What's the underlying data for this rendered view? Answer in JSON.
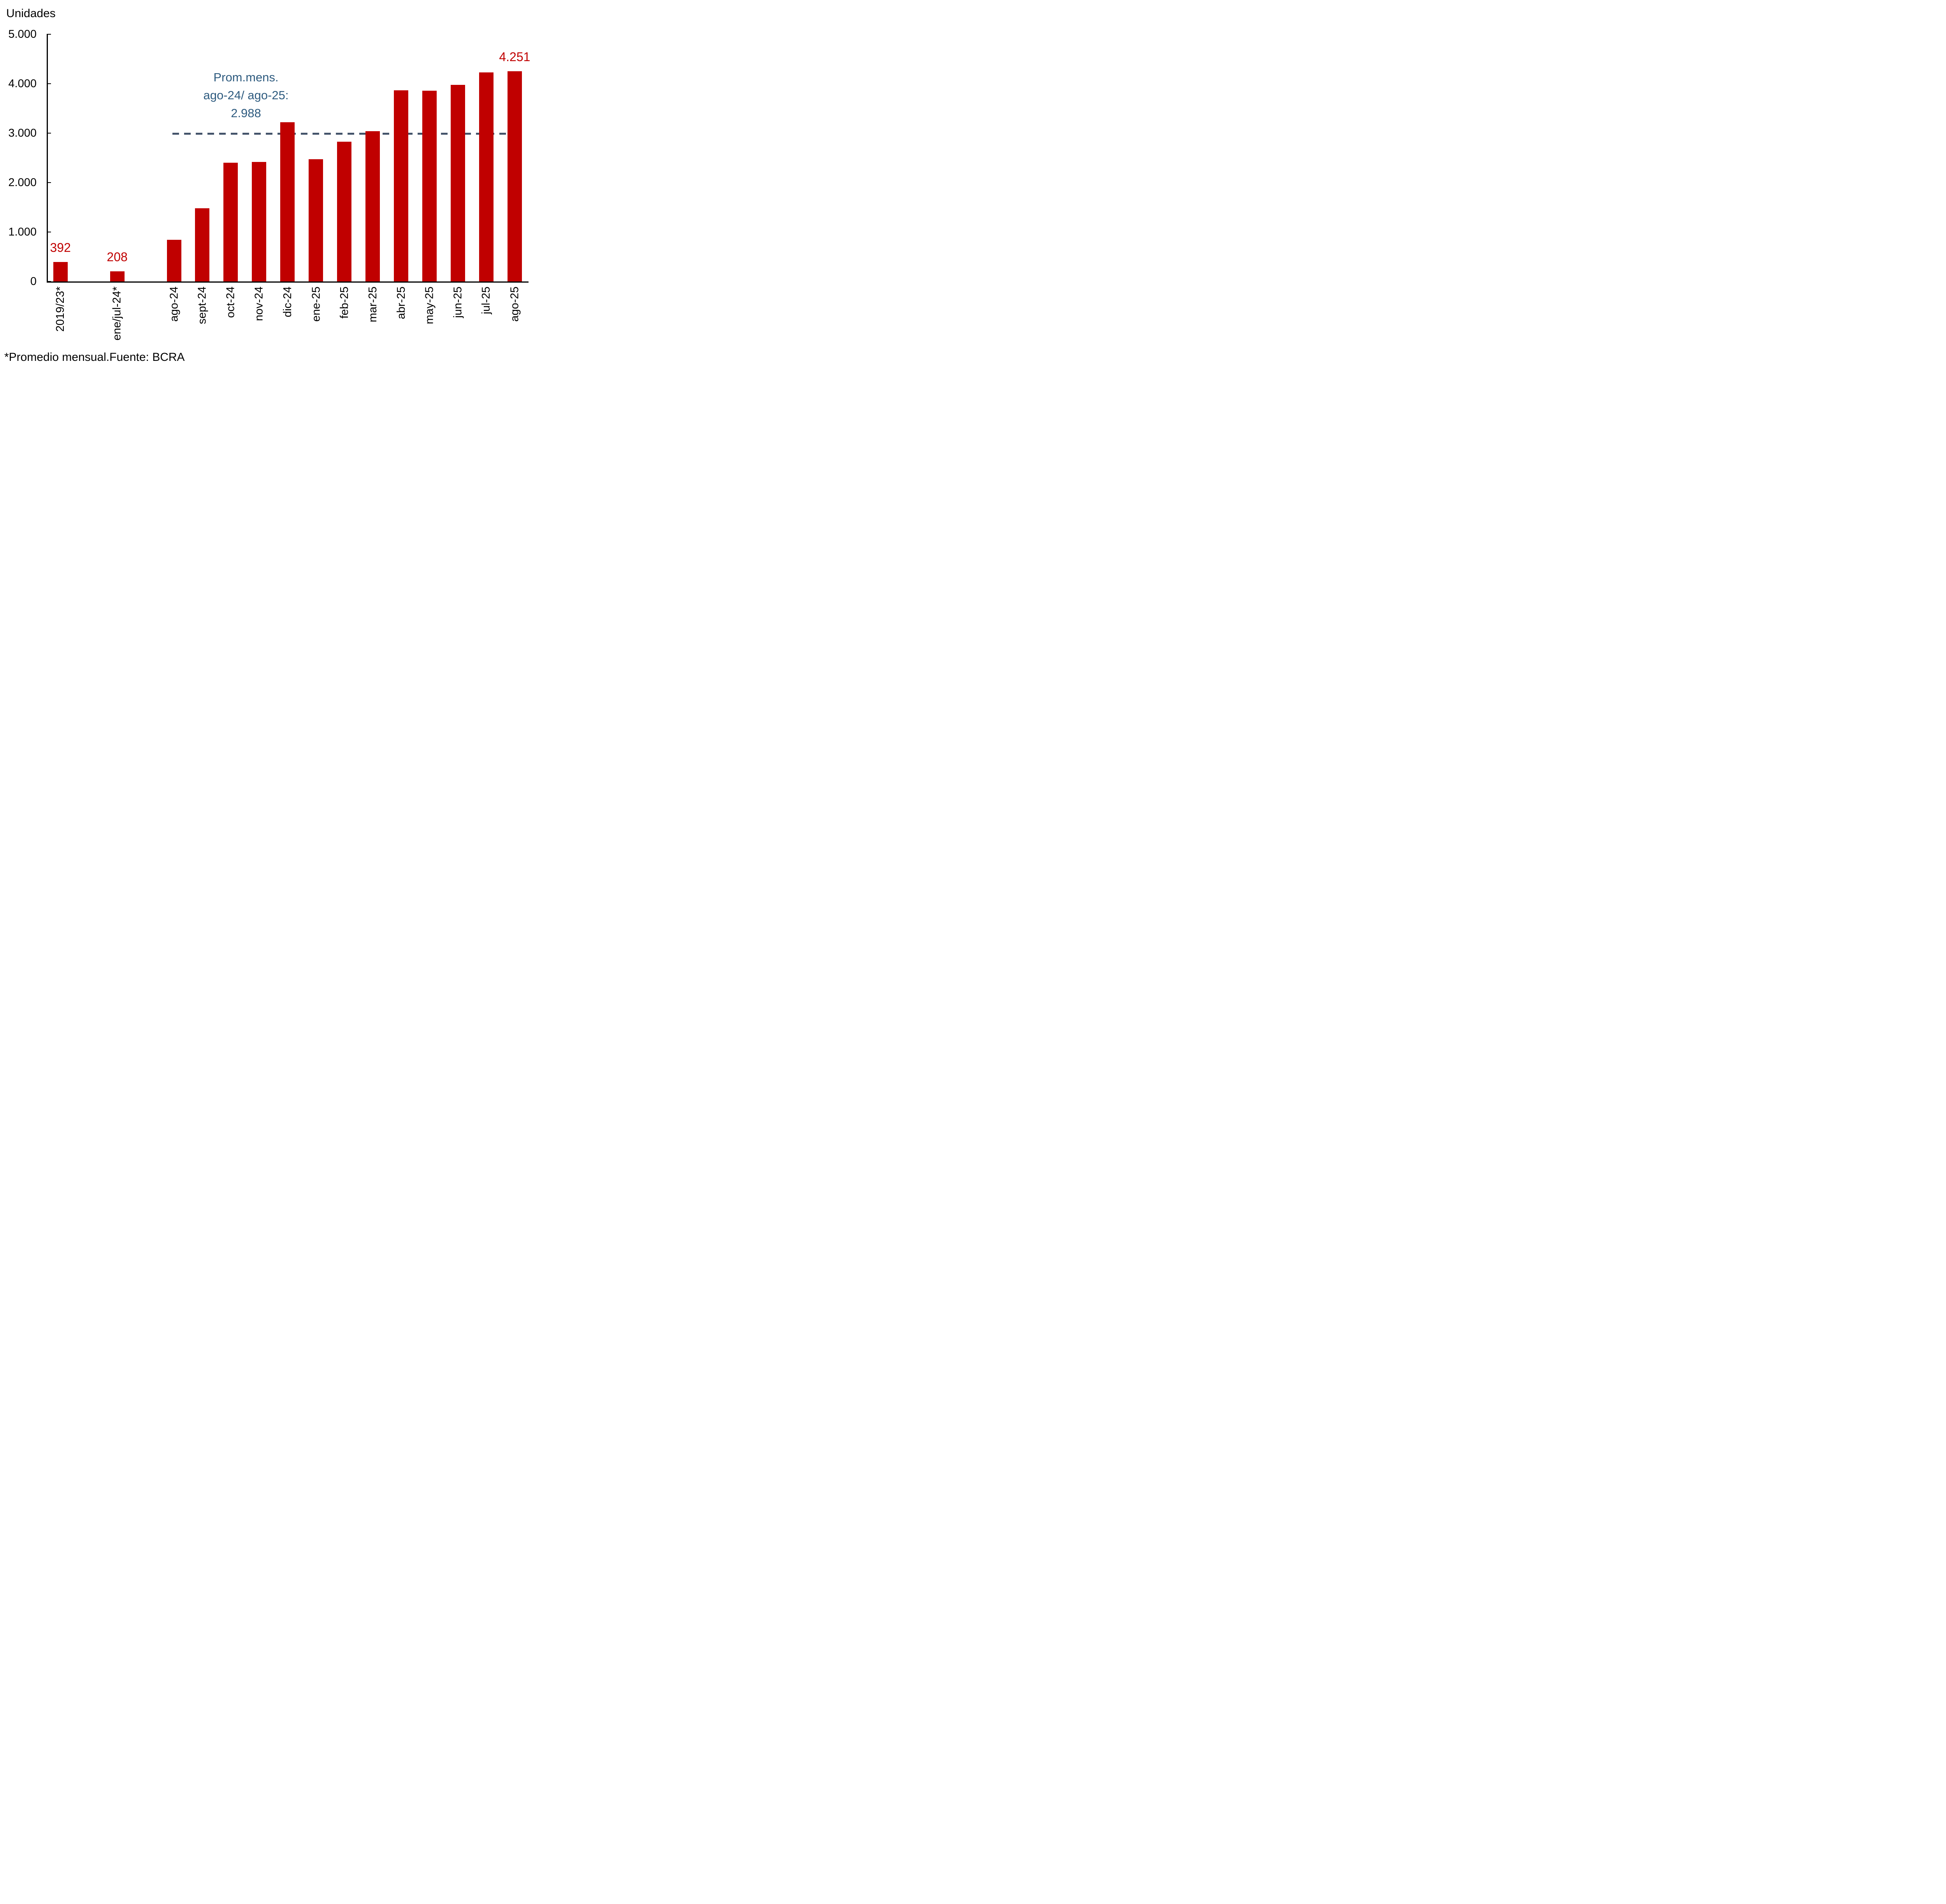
{
  "unit_label": "Unidades",
  "footnote": "*Promedio mensual.Fuente: BCRA",
  "annotation": {
    "lines": [
      "Prom.mens.",
      "ago-24/ ago-25:",
      "2.988"
    ],
    "color": "#2E5B7F"
  },
  "chart_data": {
    "type": "bar",
    "title": "",
    "ylabel": "Unidades",
    "xlabel": "",
    "ylim": [
      0,
      5000
    ],
    "grid": false,
    "legend_position": "none",
    "y_ticks": [
      {
        "value": 5000,
        "label": "5.000"
      },
      {
        "value": 4000,
        "label": "4.000"
      },
      {
        "value": 3000,
        "label": "3.000"
      },
      {
        "value": 2000,
        "label": "2.000"
      },
      {
        "value": 1000,
        "label": "1.000"
      },
      {
        "value": 0,
        "label": "0"
      }
    ],
    "categories": [
      "2019/23*",
      "ene/jul-24*",
      "ago-24",
      "sept-24",
      "oct-24",
      "nov-24",
      "dic-24",
      "ene-25",
      "feb-25",
      "mar-25",
      "abr-25",
      "may-25",
      "jun-25",
      "jul-25",
      "ago-25"
    ],
    "values": [
      392,
      208,
      840,
      1480,
      2400,
      2420,
      3220,
      2470,
      2830,
      3040,
      3870,
      3860,
      3980,
      4230,
      4251
    ],
    "data_labels": [
      "392",
      "208",
      "",
      "",
      "",
      "",
      "",
      "",
      "",
      "",
      "",
      "",
      "",
      "",
      "4.251"
    ],
    "slots": [
      0,
      2,
      4,
      5,
      6,
      7,
      8,
      9,
      10,
      11,
      12,
      13,
      14,
      15,
      16
    ],
    "bar_color": "#C00000",
    "data_label_color": "#C00000",
    "axis_color": "#000000",
    "average_line": {
      "value": 2988,
      "label": "2.988",
      "style": "dashed",
      "color": "#44546A"
    }
  }
}
